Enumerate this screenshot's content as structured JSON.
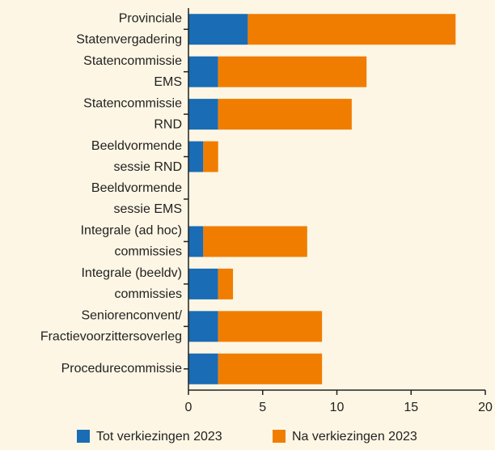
{
  "chart_data": {
    "type": "stacked_barh",
    "categories": [
      [
        "Provinciale",
        "Statenvergadering"
      ],
      [
        "Statencommissie",
        "EMS"
      ],
      [
        "Statencommissie",
        "RND"
      ],
      [
        "Beeldvormende",
        "sessie RND"
      ],
      [
        "Beeldvormende",
        "sessie EMS"
      ],
      [
        "Integrale (ad hoc)",
        "commissies"
      ],
      [
        "Integrale (beeldv)",
        "commissies"
      ],
      [
        "Seniorenconvent/",
        "Fractievoorzittersoverleg"
      ],
      [
        "Procedurecommissie"
      ]
    ],
    "series": [
      {
        "name": "Tot verkiezingen 2023",
        "color": "#1a6cb4",
        "values": [
          4,
          2,
          2,
          1,
          0,
          1,
          2,
          2,
          2
        ]
      },
      {
        "name": "Na verkiezingen 2023",
        "color": "#f07d00",
        "values": [
          14,
          10,
          9,
          1,
          0,
          7,
          1,
          7,
          7
        ]
      }
    ],
    "xlim": [
      0,
      20
    ],
    "xticks": [
      0,
      5,
      10,
      15,
      20
    ],
    "legend": "bottom"
  }
}
